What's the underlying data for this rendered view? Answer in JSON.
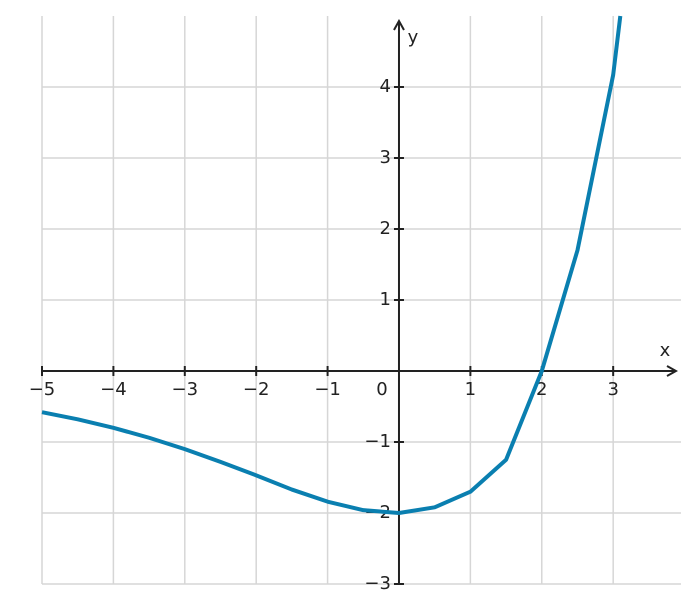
{
  "chart_data": {
    "type": "line",
    "x_label": "x",
    "y_label": "y",
    "x": [
      -5,
      -4.5,
      -4,
      -3.5,
      -3,
      -2.5,
      -2,
      -1.5,
      -1,
      -0.5,
      0,
      0.5,
      1,
      1.5,
      2,
      2.5,
      3,
      3.1
    ],
    "series": [
      {
        "color": "#0a7fb0",
        "values": [
          -0.58,
          -0.68,
          -0.8,
          -0.94,
          -1.1,
          -1.28,
          -1.47,
          -1.67,
          -1.84,
          -1.96,
          -2,
          -1.92,
          -1.7,
          -1.25,
          0,
          1.7,
          4.17,
          5.0
        ]
      }
    ],
    "xlim": [
      -5,
      3.95
    ],
    "ylim": [
      -3,
      5
    ],
    "xticks": [
      {
        "value": -5,
        "label": "−5"
      },
      {
        "value": -4,
        "label": "−4"
      },
      {
        "value": -3,
        "label": "−3"
      },
      {
        "value": -2,
        "label": "−2"
      },
      {
        "value": -1,
        "label": "−1"
      },
      0,
      1,
      2,
      3
    ],
    "yticks": [
      {
        "value": -3,
        "label": "−3"
      },
      {
        "value": -2,
        "label": "−2"
      },
      {
        "value": -1,
        "label": "−1"
      },
      1,
      2,
      3,
      4
    ],
    "grid": true
  }
}
